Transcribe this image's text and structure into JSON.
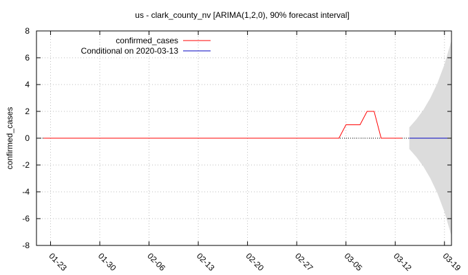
{
  "chart_data": {
    "type": "line",
    "title": "us - clark_county_nv [ARIMA(1,2,0), 90% forecast interval]",
    "xlabel": "",
    "ylabel": "confirmed_cases",
    "x_start": "2020-01-21",
    "x_end": "2020-03-20",
    "ylim": [
      -8,
      8
    ],
    "yticks": [
      -8,
      -6,
      -4,
      -2,
      0,
      2,
      4,
      6,
      8
    ],
    "xticks": [
      "01-23",
      "01-30",
      "02-06",
      "02-13",
      "02-20",
      "02-27",
      "03-05",
      "03-12",
      "03-19"
    ],
    "grid": true,
    "legend_position": "top-left",
    "series": [
      {
        "name": "confirmed_cases",
        "color": "#ff0000",
        "points": [
          [
            "2020-01-22",
            0
          ],
          [
            "2020-03-04",
            0
          ],
          [
            "2020-03-05",
            1
          ],
          [
            "2020-03-07",
            1
          ],
          [
            "2020-03-08",
            2
          ],
          [
            "2020-03-09",
            2
          ],
          [
            "2020-03-10",
            0
          ],
          [
            "2020-03-13",
            0
          ]
        ]
      },
      {
        "name": "Conditional on 2020-03-13",
        "color": "#0000c0",
        "points": [
          [
            "2020-03-14",
            0
          ],
          [
            "2020-03-20",
            0
          ]
        ]
      }
    ],
    "forecast_interval": {
      "color": "#dcdcdc",
      "points": [
        [
          "2020-03-14",
          -0.8,
          0.8
        ],
        [
          "2020-03-15",
          -1.4,
          1.4
        ],
        [
          "2020-03-16",
          -2.1,
          2.1
        ],
        [
          "2020-03-17",
          -3.0,
          3.0
        ],
        [
          "2020-03-18",
          -4.1,
          4.1
        ],
        [
          "2020-03-19",
          -5.5,
          5.5
        ],
        [
          "2020-03-20",
          -7.3,
          7.3
        ]
      ]
    },
    "reference_line": {
      "y": 0,
      "style": "dotted"
    }
  }
}
